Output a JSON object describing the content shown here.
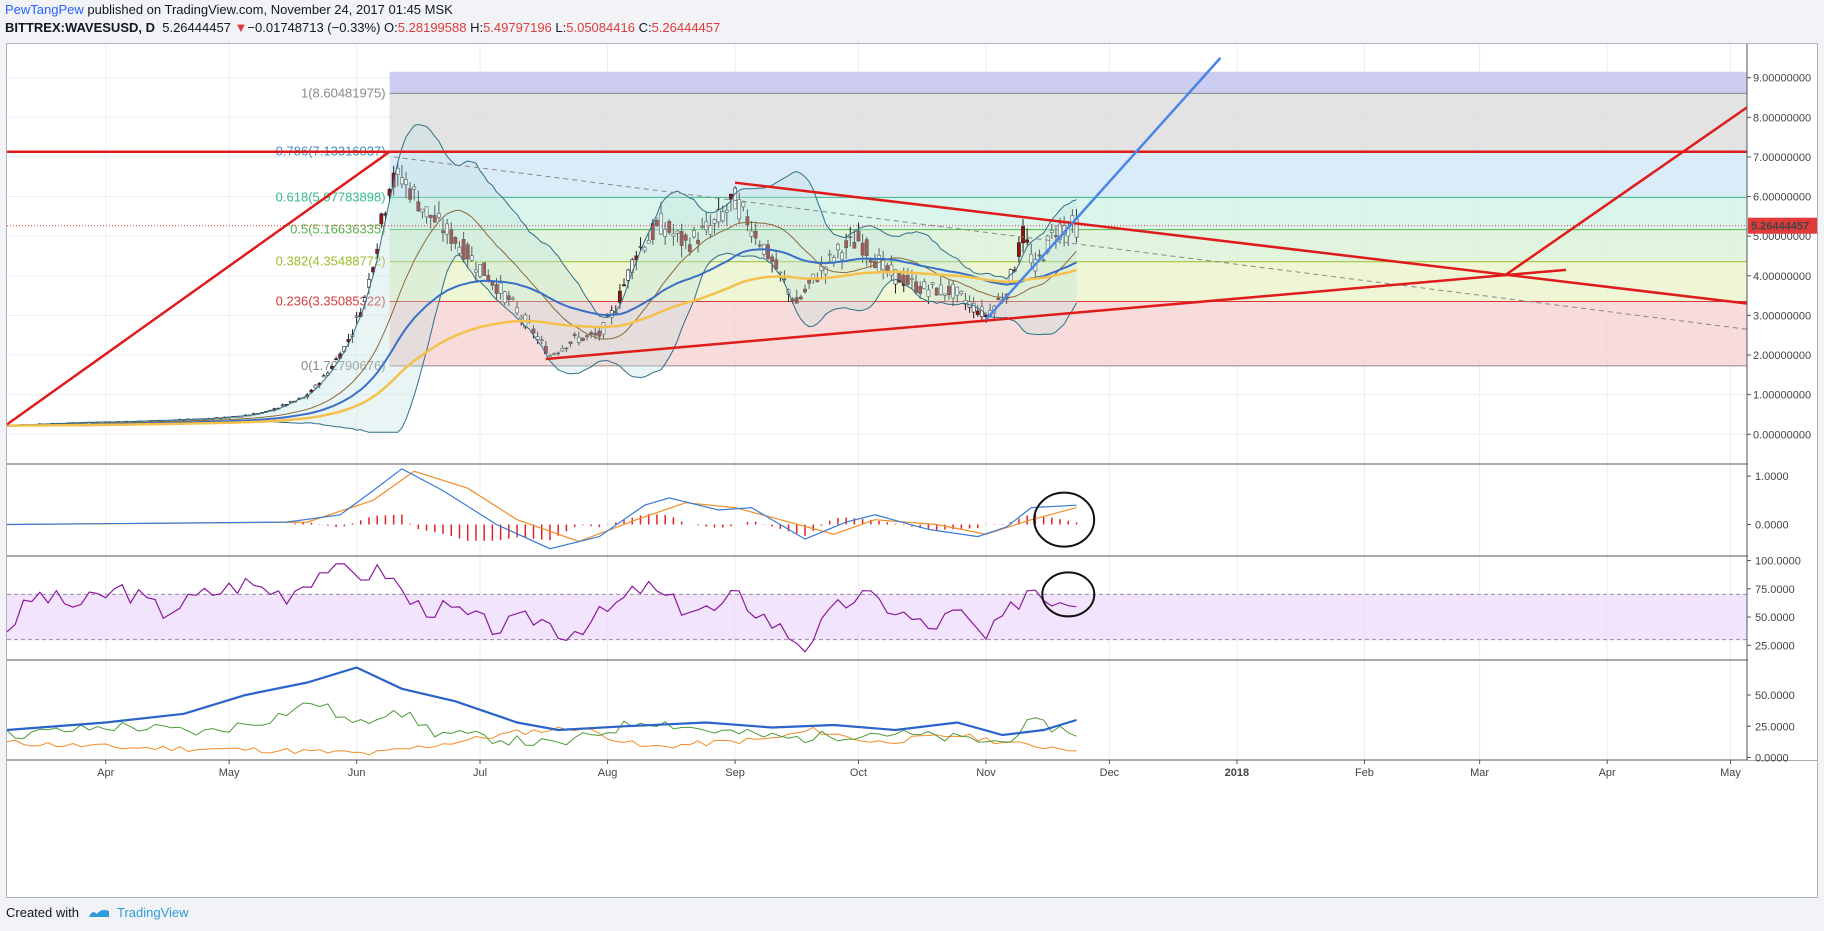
{
  "header": {
    "user": "PewTangPew",
    "published": " published on TradingView.com, November 24, 2017 01:45 MSK",
    "symbol": "BITTREX:WAVESUSD, D",
    "last": "5.26444457",
    "change_arrow": "▼",
    "change": "−0.01748713 (−0.33%)",
    "open_label": "O:",
    "open": "5.28199588",
    "high_label": "H:",
    "high": "5.49797196",
    "low_label": "L:",
    "low": "5.05084416",
    "close_label": "C:",
    "close": "5.26444457"
  },
  "footer": {
    "created_with": "Created with",
    "brand": "TradingView"
  },
  "colors": {
    "up": "#ffffff",
    "down": "#9b1111",
    "trend_red": "#e01b1b",
    "trend_blue": "#4a86e8",
    "ema_yellow": "#f5c14a",
    "rsi_purple": "#8b1a9e",
    "macd_blue": "#3a7bd5",
    "macd_orange": "#f28c28"
  },
  "chart_data": [
    {
      "type": "candlestick",
      "panel": "price",
      "y_axis_ticks": [
        "9.00000000",
        "8.00000000",
        "7.00000000",
        "6.00000000",
        "5.00000000",
        "4.00000000",
        "3.00000000",
        "2.00000000",
        "1.00000000",
        "0.00000000"
      ],
      "y_tick_values": [
        9,
        8,
        7,
        6,
        5,
        4,
        3,
        2,
        1,
        0
      ],
      "ylim": [
        -0.75,
        9.85
      ],
      "x_tick_labels": [
        "Apr",
        "May",
        "Jun",
        "Jul",
        "Aug",
        "Sep",
        "Oct",
        "Nov",
        "Dec",
        "2018",
        "Feb",
        "Mar",
        "Apr",
        "May"
      ],
      "x_tick_dates": [
        "2017-04-01",
        "2017-05-01",
        "2017-06-01",
        "2017-07-01",
        "2017-08-01",
        "2017-09-01",
        "2017-10-01",
        "2017-11-01",
        "2017-12-01",
        "2018-01-01",
        "2018-02-01",
        "2018-03-01",
        "2018-04-01",
        "2018-05-01"
      ],
      "x_range": [
        "2017-03-08",
        "2018-05-05"
      ],
      "last_price_label": "5.26444457",
      "last_price": 5.26444457,
      "price_path": [
        [
          "2017-03-08",
          0.22
        ],
        [
          "2017-03-20",
          0.27
        ],
        [
          "2017-04-01",
          0.3
        ],
        [
          "2017-04-20",
          0.36
        ],
        [
          "2017-05-01",
          0.42
        ],
        [
          "2017-05-10",
          0.55
        ],
        [
          "2017-05-20",
          0.95
        ],
        [
          "2017-05-25",
          1.55
        ],
        [
          "2017-05-30",
          2.35
        ],
        [
          "2017-06-03",
          3.4
        ],
        [
          "2017-06-06",
          4.8
        ],
        [
          "2017-06-09",
          6.3
        ],
        [
          "2017-06-12",
          6.5
        ],
        [
          "2017-06-18",
          5.6
        ],
        [
          "2017-06-25",
          4.9
        ],
        [
          "2017-07-02",
          4.1
        ],
        [
          "2017-07-08",
          3.4
        ],
        [
          "2017-07-14",
          2.6
        ],
        [
          "2017-07-18",
          2.0
        ],
        [
          "2017-07-24",
          2.4
        ],
        [
          "2017-07-30",
          2.5
        ],
        [
          "2017-08-03",
          3.2
        ],
        [
          "2017-08-08",
          4.6
        ],
        [
          "2017-08-14",
          5.3
        ],
        [
          "2017-08-20",
          4.8
        ],
        [
          "2017-08-27",
          5.3
        ],
        [
          "2017-09-01",
          5.9
        ],
        [
          "2017-09-06",
          5.1
        ],
        [
          "2017-09-12",
          4.0
        ],
        [
          "2017-09-16",
          3.3
        ],
        [
          "2017-09-20",
          3.9
        ],
        [
          "2017-09-26",
          4.6
        ],
        [
          "2017-10-01",
          4.9
        ],
        [
          "2017-10-08",
          4.1
        ],
        [
          "2017-10-16",
          3.7
        ],
        [
          "2017-10-24",
          3.6
        ],
        [
          "2017-11-01",
          3.0
        ],
        [
          "2017-11-06",
          3.6
        ],
        [
          "2017-11-10",
          5.0
        ],
        [
          "2017-11-13",
          4.2
        ],
        [
          "2017-11-18",
          5.2
        ],
        [
          "2017-11-23",
          5.26
        ]
      ],
      "fibonacci_levels": [
        {
          "label": "1(8.60481975)",
          "ratio": 1,
          "value": 8.60481975
        },
        {
          "label": "0.786(7.13316037)",
          "ratio": 0.786,
          "value": 7.13316037
        },
        {
          "label": "0.618(5.97783898)",
          "ratio": 0.618,
          "value": 5.97783898
        },
        {
          "label": "0.5(5.16636335)",
          "ratio": 0.5,
          "value": 5.16636335
        },
        {
          "label": "0.382(4.35488772)",
          "ratio": 0.382,
          "value": 4.35488772
        },
        {
          "label": "0.236(3.35085322)",
          "ratio": 0.236,
          "value": 3.35085322
        },
        {
          "label": "0(1.72790676)",
          "ratio": 0,
          "value": 1.72790676
        }
      ],
      "fib_band_top": 9.15
    },
    {
      "type": "line",
      "panel": "macd",
      "name": "",
      "y_axis_ticks": [
        "1.0000",
        "0.0000"
      ],
      "y_tick_values": [
        1,
        0
      ],
      "ylim": [
        -0.65,
        1.25
      ],
      "macd_path": [
        [
          "2017-03-08",
          0
        ],
        [
          "2017-05-15",
          0.05
        ],
        [
          "2017-05-28",
          0.2
        ],
        [
          "2017-06-05",
          0.7
        ],
        [
          "2017-06-12",
          1.15
        ],
        [
          "2017-06-22",
          0.7
        ],
        [
          "2017-07-05",
          0.0
        ],
        [
          "2017-07-18",
          -0.5
        ],
        [
          "2017-07-30",
          -0.25
        ],
        [
          "2017-08-10",
          0.4
        ],
        [
          "2017-08-16",
          0.55
        ],
        [
          "2017-08-28",
          0.3
        ],
        [
          "2017-09-05",
          0.35
        ],
        [
          "2017-09-18",
          -0.3
        ],
        [
          "2017-09-28",
          0.05
        ],
        [
          "2017-10-05",
          0.2
        ],
        [
          "2017-10-18",
          -0.1
        ],
        [
          "2017-10-30",
          -0.25
        ],
        [
          "2017-11-06",
          -0.05
        ],
        [
          "2017-11-12",
          0.35
        ],
        [
          "2017-11-23",
          0.4
        ]
      ],
      "signal_path": [
        [
          "2017-03-08",
          0
        ],
        [
          "2017-05-20",
          0.05
        ],
        [
          "2017-06-05",
          0.5
        ],
        [
          "2017-06-15",
          1.1
        ],
        [
          "2017-06-28",
          0.75
        ],
        [
          "2017-07-10",
          0.1
        ],
        [
          "2017-07-25",
          -0.35
        ],
        [
          "2017-08-08",
          0.1
        ],
        [
          "2017-08-20",
          0.45
        ],
        [
          "2017-09-01",
          0.35
        ],
        [
          "2017-09-12",
          0.1
        ],
        [
          "2017-09-25",
          -0.2
        ],
        [
          "2017-10-05",
          0.1
        ],
        [
          "2017-10-20",
          0.0
        ],
        [
          "2017-11-01",
          -0.2
        ],
        [
          "2017-11-12",
          0.1
        ],
        [
          "2017-11-23",
          0.35
        ]
      ]
    },
    {
      "type": "line",
      "panel": "rsi",
      "y_axis_ticks": [
        "100.0000",
        "75.0000",
        "50.0000",
        "25.0000"
      ],
      "y_tick_values": [
        100,
        75,
        50,
        25
      ],
      "ylim": [
        12,
        104
      ],
      "band": [
        30,
        70
      ],
      "rsi_path": [
        [
          "2017-03-08",
          40
        ],
        [
          "2017-03-15",
          70
        ],
        [
          "2017-03-25",
          60
        ],
        [
          "2017-04-05",
          75
        ],
        [
          "2017-04-15",
          55
        ],
        [
          "2017-04-25",
          70
        ],
        [
          "2017-05-05",
          80
        ],
        [
          "2017-05-15",
          70
        ],
        [
          "2017-05-25",
          95
        ],
        [
          "2017-06-01",
          88
        ],
        [
          "2017-06-08",
          90
        ],
        [
          "2017-06-15",
          60
        ],
        [
          "2017-06-25",
          55
        ],
        [
          "2017-07-05",
          40
        ],
        [
          "2017-07-15",
          50
        ],
        [
          "2017-07-22",
          35
        ],
        [
          "2017-08-01",
          55
        ],
        [
          "2017-08-10",
          78
        ],
        [
          "2017-08-18",
          60
        ],
        [
          "2017-08-28",
          55
        ],
        [
          "2017-09-01",
          70
        ],
        [
          "2017-09-10",
          45
        ],
        [
          "2017-09-18",
          25
        ],
        [
          "2017-09-25",
          55
        ],
        [
          "2017-10-01",
          70
        ],
        [
          "2017-10-08",
          60
        ],
        [
          "2017-10-18",
          40
        ],
        [
          "2017-10-25",
          55
        ],
        [
          "2017-11-01",
          30
        ],
        [
          "2017-11-08",
          60
        ],
        [
          "2017-11-12",
          80
        ],
        [
          "2017-11-15",
          68
        ],
        [
          "2017-11-23",
          65
        ]
      ]
    },
    {
      "type": "line",
      "panel": "dmi",
      "y_axis_ticks": [
        "50.0000",
        "25.0000",
        "0.0000"
      ],
      "y_tick_values": [
        50,
        25,
        0
      ],
      "ylim": [
        -2,
        78
      ],
      "adx_path": [
        [
          "2017-03-08",
          22
        ],
        [
          "2017-04-01",
          28
        ],
        [
          "2017-04-20",
          35
        ],
        [
          "2017-05-05",
          50
        ],
        [
          "2017-05-20",
          60
        ],
        [
          "2017-06-01",
          72
        ],
        [
          "2017-06-12",
          55
        ],
        [
          "2017-06-25",
          45
        ],
        [
          "2017-07-10",
          28
        ],
        [
          "2017-07-20",
          22
        ],
        [
          "2017-08-05",
          25
        ],
        [
          "2017-08-25",
          28
        ],
        [
          "2017-09-10",
          24
        ],
        [
          "2017-09-25",
          26
        ],
        [
          "2017-10-10",
          22
        ],
        [
          "2017-10-25",
          28
        ],
        [
          "2017-11-05",
          18
        ],
        [
          "2017-11-15",
          22
        ],
        [
          "2017-11-23",
          30
        ]
      ],
      "di_plus_path": [
        [
          "2017-03-08",
          18
        ],
        [
          "2017-04-05",
          25
        ],
        [
          "2017-04-25",
          20
        ],
        [
          "2017-05-10",
          30
        ],
        [
          "2017-05-22",
          45
        ],
        [
          "2017-06-01",
          25
        ],
        [
          "2017-06-10",
          40
        ],
        [
          "2017-06-20",
          20
        ],
        [
          "2017-07-05",
          15
        ],
        [
          "2017-07-20",
          10
        ],
        [
          "2017-08-10",
          30
        ],
        [
          "2017-08-25",
          22
        ],
        [
          "2017-09-15",
          15
        ],
        [
          "2017-10-05",
          20
        ],
        [
          "2017-10-25",
          15
        ],
        [
          "2017-11-05",
          12
        ],
        [
          "2017-11-12",
          28
        ],
        [
          "2017-11-23",
          20
        ]
      ],
      "di_minus_path": [
        [
          "2017-03-08",
          12
        ],
        [
          "2017-04-05",
          8
        ],
        [
          "2017-05-10",
          6
        ],
        [
          "2017-06-05",
          3
        ],
        [
          "2017-06-20",
          10
        ],
        [
          "2017-07-10",
          20
        ],
        [
          "2017-07-25",
          24
        ],
        [
          "2017-08-10",
          8
        ],
        [
          "2017-09-10",
          15
        ],
        [
          "2017-09-20",
          22
        ],
        [
          "2017-10-05",
          12
        ],
        [
          "2017-10-25",
          18
        ],
        [
          "2017-11-10",
          10
        ],
        [
          "2017-11-23",
          7
        ]
      ]
    }
  ]
}
